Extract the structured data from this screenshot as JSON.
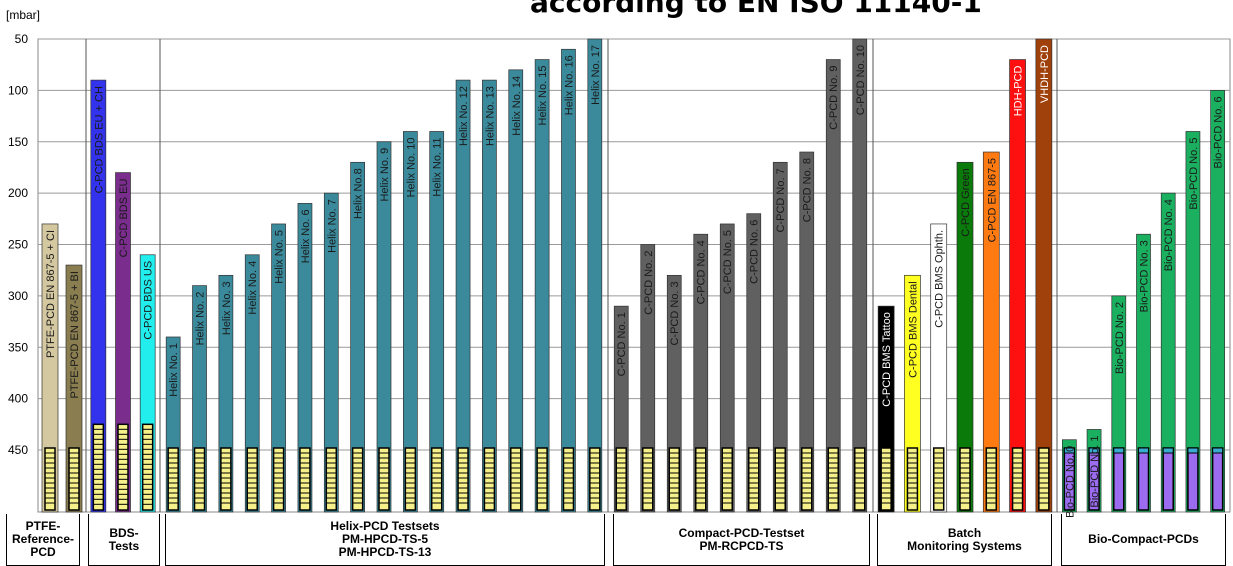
{
  "chart_data": {
    "type": "bar",
    "title": "according to EN ISO 11140-1",
    "unit_label": "[mbar]",
    "y_axis": {
      "ticks": [
        50,
        100,
        150,
        200,
        250,
        300,
        350,
        400,
        450
      ],
      "range": [
        50,
        450
      ],
      "inverted": true
    },
    "groups": [
      {
        "name": "PTFE-Reference-PCD",
        "lines": [
          "PTFE-",
          "Reference-",
          "PCD"
        ],
        "bars": [
          {
            "label": "PTFE-PCD EN 867-5 + CI",
            "value": 230,
            "color": "#d4c8a0"
          },
          {
            "label": "PTFE-PCD EN 867-5 + BI",
            "value": 270,
            "color": "#8a7d50"
          }
        ]
      },
      {
        "name": "BDS-Tests",
        "lines": [
          "BDS-",
          "Tests"
        ],
        "bars": [
          {
            "label": "C-PCD BDS EU + CH",
            "value": 90,
            "color": "#3333ee"
          },
          {
            "label": "C-PCD BDS EU",
            "value": 180,
            "color": "#7b2d8e"
          },
          {
            "label": "C-PCD BDS US",
            "value": 260,
            "color": "#22eeee"
          }
        ]
      },
      {
        "name": "Helix-PCD Testsets",
        "lines": [
          "Helix-PCD Testsets",
          "PM-HPCD-TS-5",
          "PM-HPCD-TS-13"
        ],
        "bars": [
          {
            "label": "Helix No. 1",
            "value": 340,
            "color": "#3a8a9c"
          },
          {
            "label": "Helix No. 2",
            "value": 290,
            "color": "#3a8a9c"
          },
          {
            "label": "Helix No. 3",
            "value": 280,
            "color": "#3a8a9c"
          },
          {
            "label": "Helix No. 4",
            "value": 260,
            "color": "#3a8a9c"
          },
          {
            "label": "Helix No. 5",
            "value": 230,
            "color": "#3a8a9c"
          },
          {
            "label": "Helix No. 6",
            "value": 210,
            "color": "#3a8a9c"
          },
          {
            "label": "Helix No. 7",
            "value": 200,
            "color": "#3a8a9c"
          },
          {
            "label": "Helix No.8",
            "value": 170,
            "color": "#3a8a9c"
          },
          {
            "label": "Helix No. 9",
            "value": 150,
            "color": "#3a8a9c"
          },
          {
            "label": "Helix No. 10",
            "value": 140,
            "color": "#3a8a9c"
          },
          {
            "label": "Helix No. 11",
            "value": 140,
            "color": "#3a8a9c"
          },
          {
            "label": "Helix No. 12",
            "value": 90,
            "color": "#3a8a9c"
          },
          {
            "label": "Helix No. 13",
            "value": 90,
            "color": "#3a8a9c"
          },
          {
            "label": "Helix No. 14",
            "value": 80,
            "color": "#3a8a9c"
          },
          {
            "label": "Helix No. 15",
            "value": 70,
            "color": "#3a8a9c"
          },
          {
            "label": "Helix No. 16",
            "value": 60,
            "color": "#3a8a9c"
          },
          {
            "label": "Helix No. 17",
            "value": 50,
            "color": "#3a8a9c"
          }
        ]
      },
      {
        "name": "Compact-PCD-Testset",
        "lines": [
          "Compact-PCD-Testset",
          "PM-RCPCD-TS"
        ],
        "bars": [
          {
            "label": "C-PCD No. 1",
            "value": 310,
            "color": "#606060"
          },
          {
            "label": "C-PCD No. 2",
            "value": 250,
            "color": "#606060"
          },
          {
            "label": "C-PCD No. 3",
            "value": 280,
            "color": "#606060"
          },
          {
            "label": "C-PCD No. 4",
            "value": 240,
            "color": "#606060"
          },
          {
            "label": "C-PCD No. 5",
            "value": 230,
            "color": "#606060"
          },
          {
            "label": "C-PCD No. 6",
            "value": 220,
            "color": "#606060"
          },
          {
            "label": "C-PCD No. 7",
            "value": 170,
            "color": "#606060"
          },
          {
            "label": "C-PCD No. 8",
            "value": 160,
            "color": "#606060"
          },
          {
            "label": "C-PCD No. 9",
            "value": 70,
            "color": "#606060"
          },
          {
            "label": "C-PCD No. 10",
            "value": 50,
            "color": "#606060"
          }
        ]
      },
      {
        "name": "Batch Monitoring Systems",
        "lines": [
          "Batch",
          "Monitoring Systems"
        ],
        "bars": [
          {
            "label": "C-PCD BMS Tattoo",
            "value": 310,
            "color": "#000000",
            "text": "#ffffff"
          },
          {
            "label": "C-PCD BMS Dental",
            "value": 280,
            "color": "#ffff22"
          },
          {
            "label": "C-PCD BMS Ophth.",
            "value": 230,
            "color": "#ffffff"
          },
          {
            "label": "C-PCD Green",
            "value": 170,
            "color": "#0a7a0a"
          },
          {
            "label": "C-PCD EN 867-5",
            "value": 160,
            "color": "#ff7a10"
          },
          {
            "label": "HDH-PCD",
            "value": 70,
            "color": "#ff1010",
            "text": "#ffffff"
          },
          {
            "label": "VHDH-PCD",
            "value": 50,
            "color": "#a0400a",
            "text": "#ffffff"
          }
        ]
      },
      {
        "name": "Bio-Compact-PCDs",
        "lines": [
          "Bio-Compact-PCDs"
        ],
        "bars": [
          {
            "label": "Bio-PCD No. 0",
            "value": 440,
            "color": "#1ab060"
          },
          {
            "label": "Bio-PCD No. 1",
            "value": 430,
            "color": "#1ab060"
          },
          {
            "label": "Bio-PCD No. 2",
            "value": 300,
            "color": "#1ab060"
          },
          {
            "label": "Bio-PCD No. 3",
            "value": 240,
            "color": "#1ab060"
          },
          {
            "label": "Bio-PCD No. 4",
            "value": 200,
            "color": "#1ab060"
          },
          {
            "label": "Bio-PCD No. 5",
            "value": 140,
            "color": "#1ab060"
          },
          {
            "label": "Bio-PCD No. 6",
            "value": 100,
            "color": "#1ab060"
          }
        ]
      }
    ]
  }
}
